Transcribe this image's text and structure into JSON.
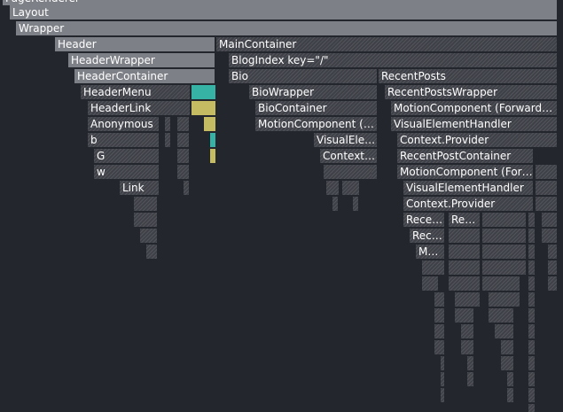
{
  "flame": {
    "nodes": [
      {
        "label": "PageRenderer",
        "fill": "solid"
      },
      {
        "label": "Layout",
        "fill": "solid"
      },
      {
        "label": "Wrapper",
        "fill": "solid"
      },
      {
        "label": "Header",
        "fill": "solid"
      },
      {
        "label": "MainContainer",
        "fill": "hatch"
      },
      {
        "label": "HeaderWrapper",
        "fill": "solid"
      },
      {
        "label": "BlogIndex key=\"/\"",
        "fill": "hatch"
      },
      {
        "label": "HeaderContainer",
        "fill": "solid"
      },
      {
        "label": "Bio",
        "fill": "hatch"
      },
      {
        "label": "RecentPosts",
        "fill": "hatch"
      },
      {
        "label": "HeaderMenu",
        "fill": "hatch"
      },
      {
        "label": "",
        "fill": "teal"
      },
      {
        "label": "BioWrapper",
        "fill": "hatch"
      },
      {
        "label": "RecentPostsWrapper",
        "fill": "hatch"
      },
      {
        "label": "HeaderLink",
        "fill": "hatch"
      },
      {
        "label": "",
        "fill": "yellow"
      },
      {
        "label": "BioContainer",
        "fill": "hatch"
      },
      {
        "label": "MotionComponent (ForwardRef)",
        "fill": "hatch"
      },
      {
        "label": "Anonymous",
        "fill": "hatch"
      },
      {
        "label": "",
        "fill": "yellow"
      },
      {
        "label": "MotionComponent (ForwardRef)",
        "fill": "hatch"
      },
      {
        "label": "VisualElementHandler",
        "fill": "hatch"
      },
      {
        "label": "b",
        "fill": "hatch"
      },
      {
        "label": "",
        "fill": "teal"
      },
      {
        "label": "VisualElementHandler",
        "fill": "hatch"
      },
      {
        "label": "Context.Provider",
        "fill": "hatch"
      },
      {
        "label": "G",
        "fill": "hatch"
      },
      {
        "label": "",
        "fill": "yellow"
      },
      {
        "label": "Context.Provider",
        "fill": "hatch"
      },
      {
        "label": "RecentPostContainer",
        "fill": "hatch"
      },
      {
        "label": "w",
        "fill": "hatch"
      },
      {
        "label": "MotionComponent (ForwardRef)",
        "fill": "hatch"
      },
      {
        "label": "Link",
        "fill": "hatch"
      },
      {
        "label": "VisualElementHandler",
        "fill": "hatch"
      },
      {
        "label": "Context.Provider",
        "fill": "hatch"
      },
      {
        "label": "RecentPost",
        "fill": "hatch"
      },
      {
        "label": "RecentPost",
        "fill": "hatch"
      },
      {
        "label": "RecentPost",
        "fill": "hatch"
      },
      {
        "label": "MotionComponent",
        "fill": "hatch"
      }
    ]
  }
}
